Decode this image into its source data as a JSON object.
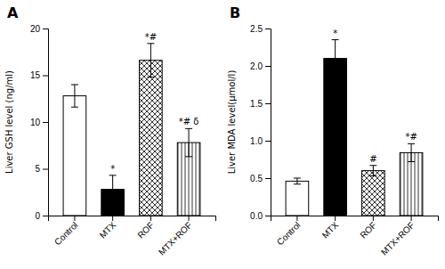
{
  "chart_data": [
    {
      "type": "bar",
      "title": "A",
      "categories": [
        "Control",
        "MTX",
        "ROF",
        "MTX+ROF"
      ],
      "values": [
        12.8,
        2.8,
        16.6,
        7.8
      ],
      "errors": [
        1.2,
        1.5,
        1.8,
        1.5
      ],
      "colors": [
        "white",
        "black",
        "checkerboard",
        "stripes"
      ],
      "annotations": [
        null,
        "*",
        "*#",
        "*# δ"
      ],
      "ylabel": "Liver GSH level (ng/ml)",
      "ylim": [
        0,
        20
      ],
      "yticks": [
        0,
        5,
        10,
        15,
        20
      ]
    },
    {
      "type": "bar",
      "title": "B",
      "categories": [
        "Control",
        "MTX",
        "ROF",
        "MTX+ROF"
      ],
      "values": [
        0.46,
        2.1,
        0.6,
        0.84
      ],
      "errors": [
        0.04,
        0.25,
        0.07,
        0.12
      ],
      "colors": [
        "white",
        "black",
        "checkerboard",
        "stripes"
      ],
      "annotations": [
        null,
        "*",
        "#",
        "*#"
      ],
      "ylabel": "Liver MDA level(μmol/l)",
      "ylim": [
        0,
        2.5
      ],
      "yticks": [
        {
          "value": 0,
          "label": "0.0"
        },
        0.5,
        {
          "value": 1,
          "label": "1.0"
        },
        1.5,
        {
          "value": 2,
          "label": "2.0"
        },
        2.5
      ]
    }
  ]
}
